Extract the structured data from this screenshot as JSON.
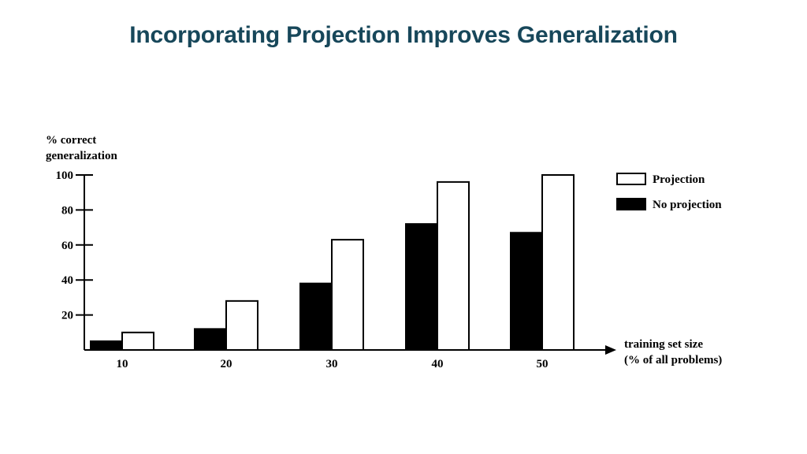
{
  "slide": {
    "title": "Incorporating Projection Improves Generalization"
  },
  "chart_data": {
    "type": "bar",
    "title": "",
    "ylabel": [
      "% correct",
      "generalization"
    ],
    "xlabel": [
      "training set size",
      "(% of all problems)"
    ],
    "categories": [
      "10",
      "20",
      "30",
      "40",
      "50"
    ],
    "yticks": [
      20,
      40,
      60,
      80,
      100
    ],
    "ylim": [
      0,
      100
    ],
    "grid": false,
    "legend_position": "top-right",
    "series": [
      {
        "name": "No projection",
        "fill": "#000000",
        "values": [
          5,
          12,
          38,
          72,
          67
        ]
      },
      {
        "name": "Projection",
        "fill": "#ffffff",
        "values": [
          10,
          28,
          63,
          96,
          100
        ]
      }
    ]
  }
}
